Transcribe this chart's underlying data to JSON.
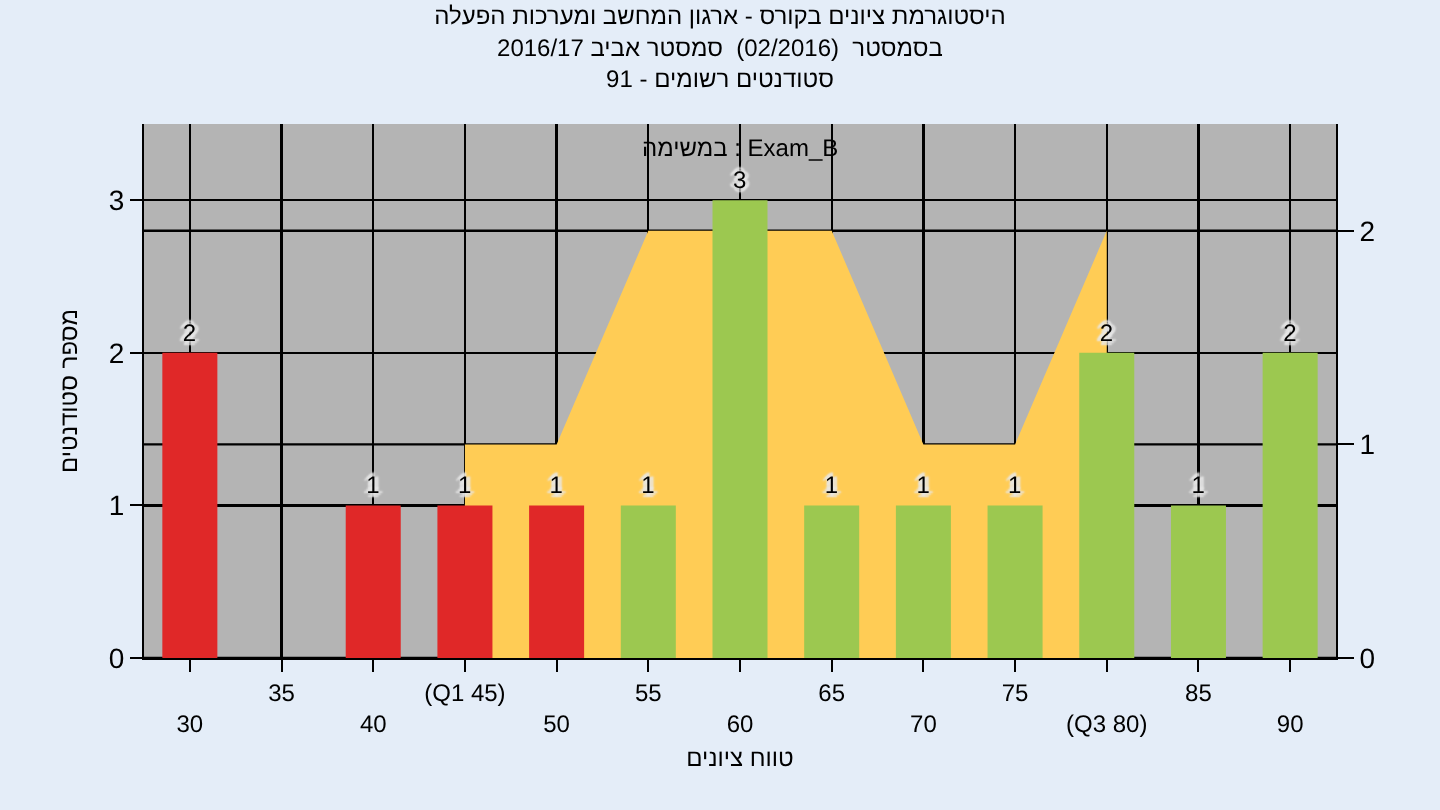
{
  "chart_data": {
    "type": "bar",
    "title": "היסטוגרמת ציונים בקורס - ארגון המחשב ומערכות הפעלה",
    "subtitle": "בסמסטר  (02/2016)  סמסטר אביב 2016/17\nסטודנטים רשומים - 91",
    "xlabel": "טווח ציונים",
    "ylabel": "מספר סטודנטים",
    "annotations": [
      "במשימה : Exam_B"
    ],
    "categories": [
      "30",
      "35",
      "40",
      "(Q1 45)",
      "50",
      "55",
      "60",
      "65",
      "70",
      "75",
      "(Q3 80)",
      "85",
      "90"
    ],
    "series": [
      {
        "type": "area",
        "axis": "y2",
        "color": "#ffcc55",
        "values": [
          null,
          null,
          null,
          1,
          1,
          2,
          null,
          2,
          1,
          1,
          2,
          null,
          null
        ]
      },
      {
        "type": "bar",
        "values": [
          2,
          0,
          1,
          1,
          1,
          1,
          3,
          1,
          1,
          1,
          2,
          1,
          2
        ],
        "colors": [
          "#e02828",
          "#e02828",
          "#e02828",
          "#e02828",
          "#e02828",
          "#9cc850",
          "#9cc850",
          "#9cc850",
          "#9cc850",
          "#9cc850",
          "#9cc850",
          "#9cc850",
          "#9cc850"
        ],
        "value_labels": [
          "2",
          null,
          "1",
          "1",
          "1",
          "1",
          "3",
          "1",
          "1",
          "1",
          "2",
          "1",
          "2"
        ]
      }
    ],
    "ylim": [
      0,
      3.5
    ],
    "yticks": [
      0,
      1,
      2,
      3
    ],
    "y2lim": [
      0,
      2.5
    ],
    "y2ticks": [
      0,
      1,
      2
    ],
    "grid": true
  }
}
